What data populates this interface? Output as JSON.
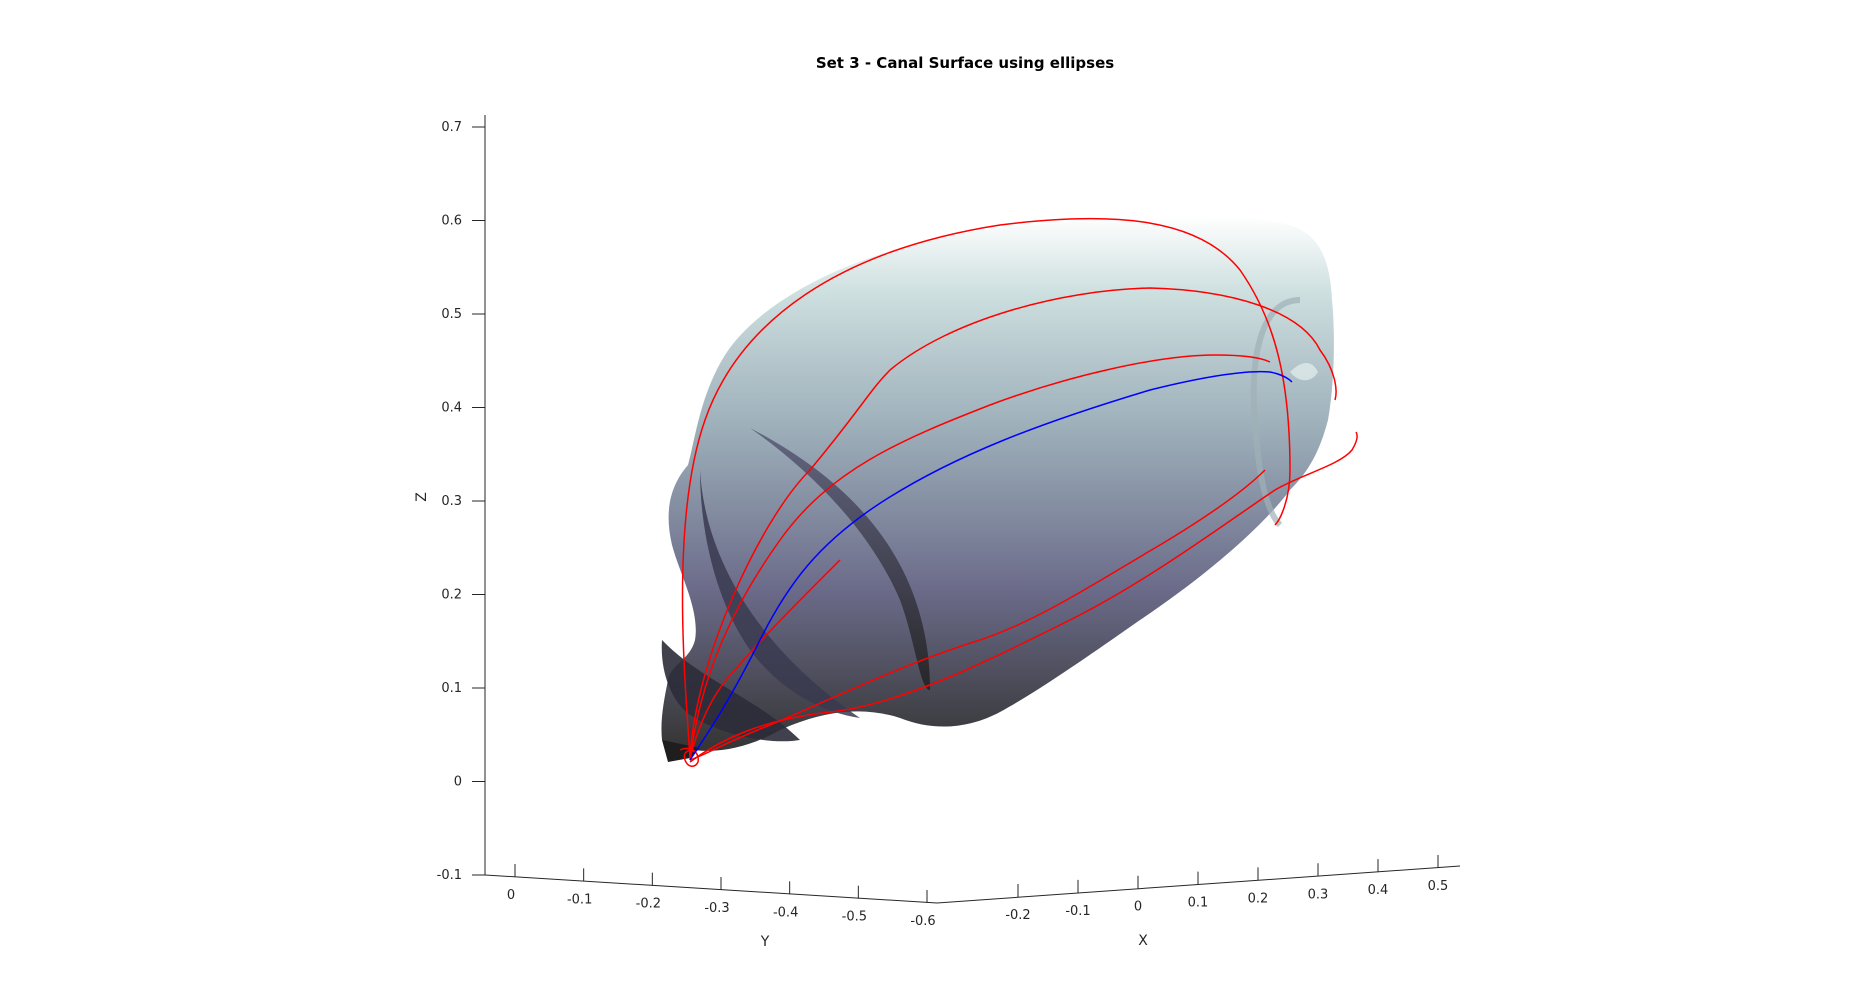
{
  "chart_data": {
    "type": "surface3d",
    "title": "Set 3 - Canal Surface using ellipses",
    "xlabel": "X",
    "ylabel": "Y",
    "zlabel": "Z",
    "xlim": [
      -0.25,
      0.55
    ],
    "ylim": [
      -0.6,
      0.05
    ],
    "zlim": [
      -0.1,
      0.72
    ],
    "x_ticks": [
      "-0.2",
      "-0.1",
      "0",
      "0.1",
      "0.2",
      "0.3",
      "0.4",
      "0.5"
    ],
    "y_ticks": [
      "0",
      "-0.1",
      "-0.2",
      "-0.3",
      "-0.4",
      "-0.5",
      "-0.6"
    ],
    "z_ticks": [
      "-0.1",
      "0",
      "0.1",
      "0.2",
      "0.3",
      "0.4",
      "0.5",
      "0.6",
      "0.7"
    ],
    "grid": false,
    "legend": "none",
    "surface_colormap": [
      "#2f2f2f",
      "#6f6f8e",
      "#a3b9c1",
      "#ffffff"
    ],
    "spine_color": "#0000ff",
    "boundary_color": "#ff0000"
  }
}
